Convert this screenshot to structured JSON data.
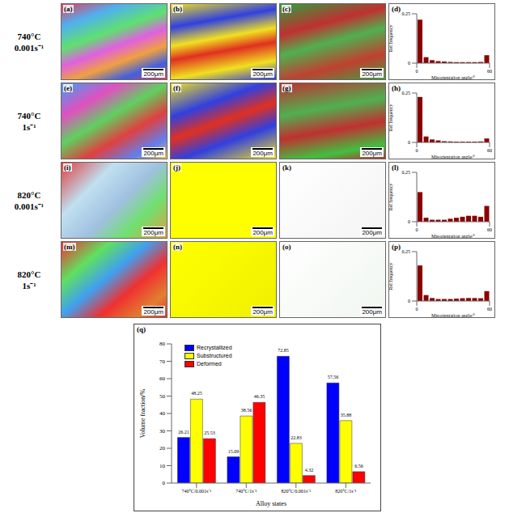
{
  "rows": [
    {
      "temperature": "740°C",
      "strain_rate": "0.001s⁻¹",
      "panels": [
        "(a)",
        "(b)",
        "(c)",
        "(d)"
      ]
    },
    {
      "temperature": "740°C",
      "strain_rate": "1s⁻¹",
      "panels": [
        "(e)",
        "(f)",
        "(g)",
        "(h)"
      ]
    },
    {
      "temperature": "820°C",
      "strain_rate": "0.001s⁻¹",
      "panels": [
        "(i)",
        "(j)",
        "(k)",
        "(l)"
      ]
    },
    {
      "temperature": "820°C",
      "strain_rate": "1s⁻¹",
      "panels": [
        "(m)",
        "(n)",
        "(o)",
        "(p)"
      ]
    }
  ],
  "scale_bar": "200μm",
  "chart_data": [
    {
      "type": "histogram",
      "panel": "(d)",
      "xlabel": "Misorientation angle/°",
      "ylabel": "Rel frequency",
      "bins": [
        0,
        5,
        10,
        15,
        20,
        25,
        30,
        35,
        40,
        45,
        50,
        55,
        60
      ],
      "values": [
        0.22,
        0.03,
        0.015,
        0.01,
        0.008,
        0.006,
        0.005,
        0.005,
        0.005,
        0.005,
        0.006,
        0.04
      ],
      "color": "#8b0000",
      "xlim": [
        0,
        60
      ],
      "xticks": [
        0,
        60
      ],
      "ylim": [
        0,
        0.25
      ],
      "yticks": [
        0,
        0.25
      ]
    },
    {
      "type": "histogram",
      "panel": "(h)",
      "xlabel": "Misorientation angle/°",
      "ylabel": "Rel frequency",
      "bins": [
        0,
        5,
        10,
        15,
        20,
        25,
        30,
        35,
        40,
        45,
        50,
        55,
        60
      ],
      "values": [
        0.23,
        0.03,
        0.015,
        0.01,
        0.006,
        0.005,
        0.004,
        0.004,
        0.004,
        0.004,
        0.005,
        0.02
      ],
      "color": "#8b0000",
      "xlim": [
        0,
        60
      ],
      "xticks": [
        0,
        60
      ],
      "ylim": [
        0,
        0.25
      ],
      "yticks": [
        0,
        0.25
      ]
    },
    {
      "type": "histogram",
      "panel": "(l)",
      "xlabel": "Misorientation angle/°",
      "ylabel": "Rel frequency",
      "bins": [
        0,
        5,
        10,
        15,
        20,
        25,
        30,
        35,
        40,
        45,
        50,
        55,
        60
      ],
      "values": [
        0.15,
        0.02,
        0.01,
        0.01,
        0.01,
        0.015,
        0.02,
        0.025,
        0.03,
        0.03,
        0.025,
        0.08
      ],
      "color": "#8b0000",
      "xlim": [
        0,
        60
      ],
      "xticks": [
        0,
        60
      ],
      "ylim": [
        0,
        0.25
      ],
      "yticks": [
        0,
        0.25
      ]
    },
    {
      "type": "histogram",
      "panel": "(p)",
      "xlabel": "Misorientation angle/°",
      "ylabel": "Rel frequency",
      "bins": [
        0,
        5,
        10,
        15,
        20,
        25,
        30,
        35,
        40,
        45,
        50,
        55,
        60
      ],
      "values": [
        0.18,
        0.03,
        0.015,
        0.01,
        0.01,
        0.01,
        0.012,
        0.014,
        0.015,
        0.015,
        0.014,
        0.05
      ],
      "color": "#8b0000",
      "xlim": [
        0,
        60
      ],
      "xticks": [
        0,
        60
      ],
      "ylim": [
        0,
        0.25
      ],
      "yticks": [
        0,
        0.25
      ]
    },
    {
      "type": "bar",
      "panel": "(q)",
      "xlabel": "Alloy states",
      "ylabel": "Volume fraction/%",
      "categories": [
        "740°C/0.001s⁻¹",
        "740°C/1s⁻¹",
        "820°C/0.001s⁻¹",
        "820°C/1s⁻¹"
      ],
      "series": [
        {
          "name": "Recrystallized",
          "color": "#0000ff",
          "values": [
            26.21,
            15.09,
            72.85,
            57.56
          ]
        },
        {
          "name": "Substructured",
          "color": "#ffff00",
          "values": [
            48.25,
            38.56,
            22.83,
            35.88
          ]
        },
        {
          "name": "Deformed",
          "color": "#ff0000",
          "values": [
            25.53,
            46.35,
            4.32,
            6.56
          ]
        }
      ],
      "ylim": [
        0,
        80
      ],
      "yticks": [
        0,
        10,
        20,
        30,
        40,
        50,
        60,
        70,
        80
      ],
      "legend": "top",
      "data_labels": true
    }
  ]
}
